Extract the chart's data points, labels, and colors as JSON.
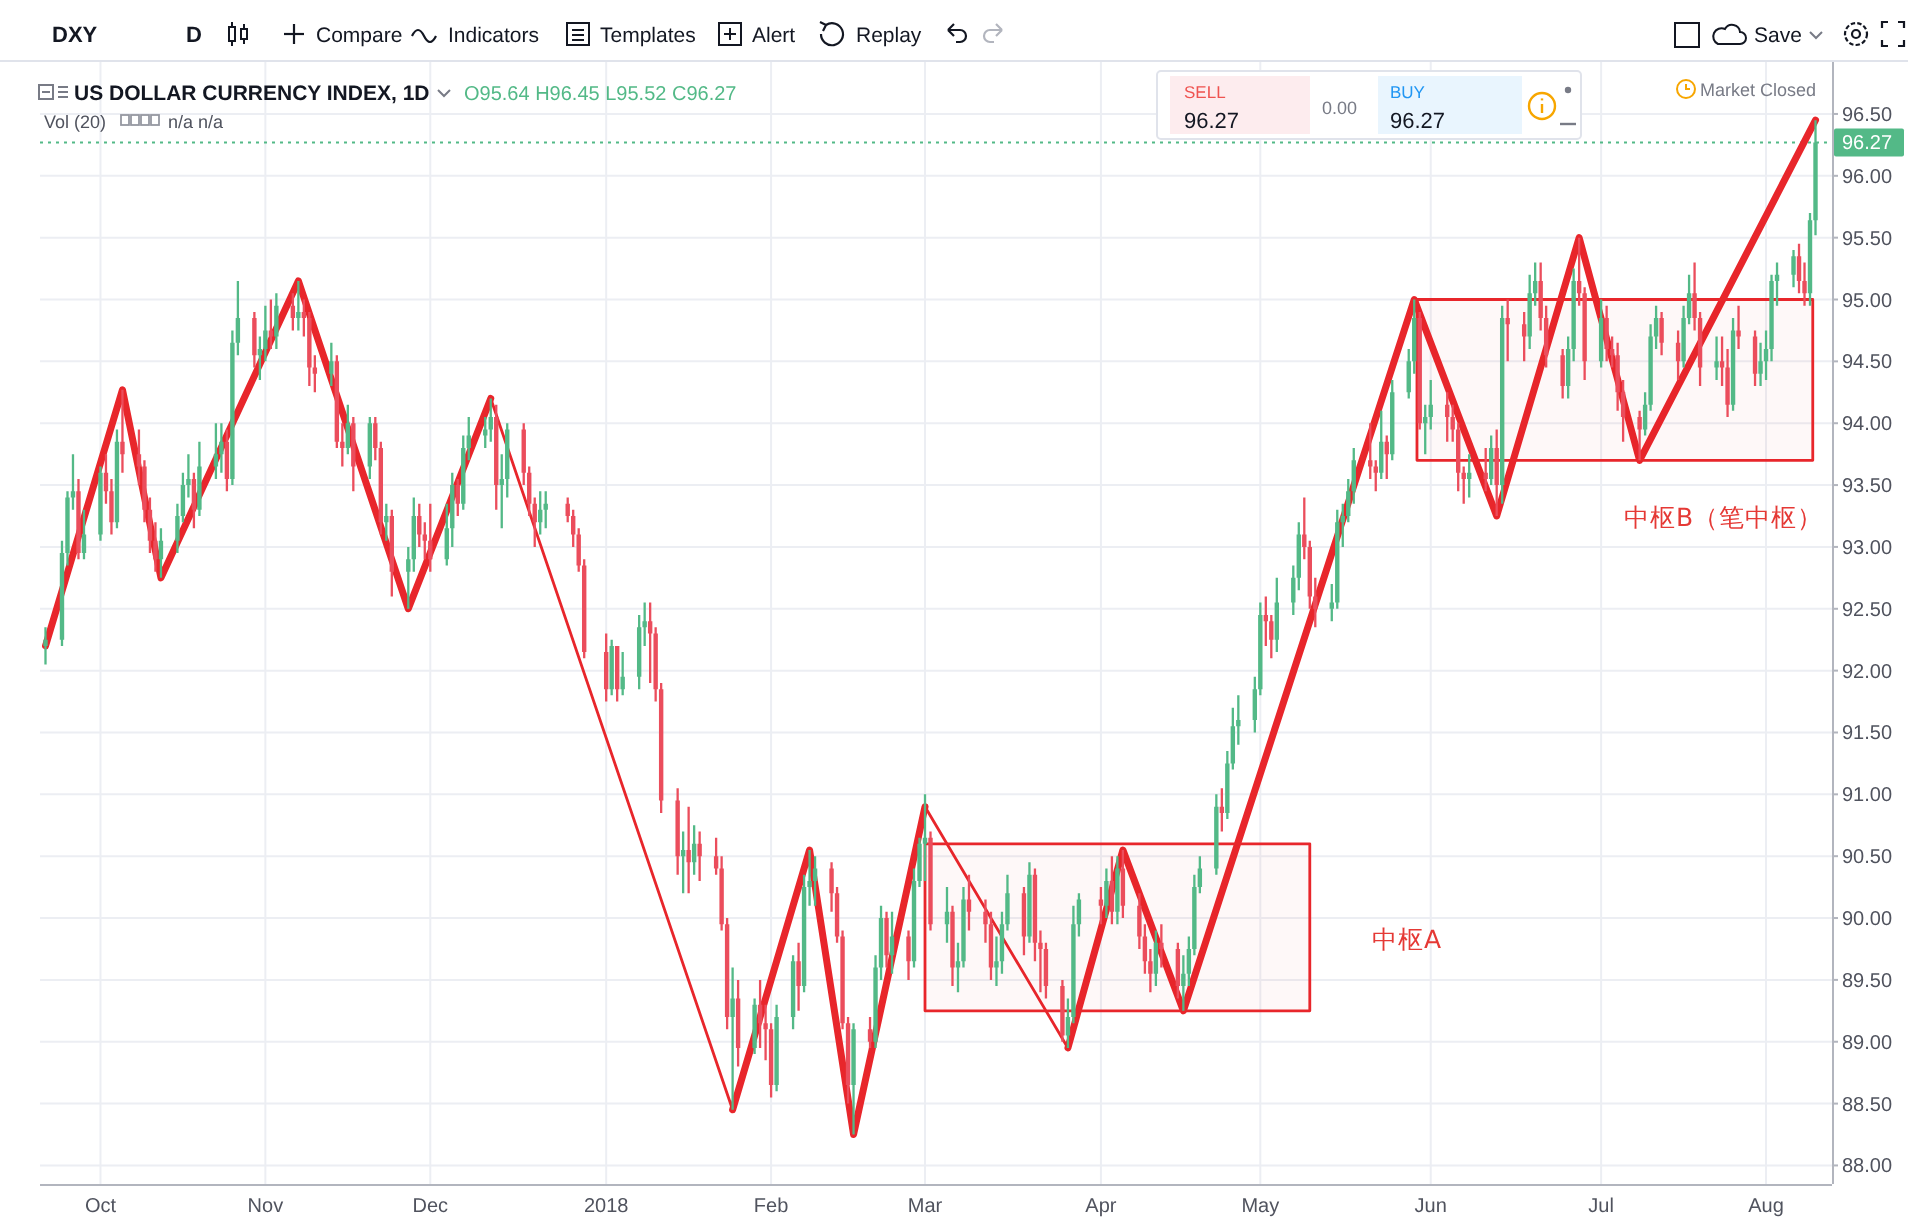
{
  "chart_data": {
    "type": "candlestick",
    "title": "US DOLLAR CURRENCY INDEX, 1D",
    "subtitle": "O95.64 H96.45 L95.52 C96.27",
    "x": [
      "2017-09-22",
      "2017-09-25",
      "2017-09-26",
      "2017-09-27",
      "2017-09-28",
      "2017-09-29",
      "2017-10-02",
      "2017-10-03",
      "2017-10-04",
      "2017-10-05",
      "2017-10-06",
      "2017-10-09",
      "2017-10-10",
      "2017-10-11",
      "2017-10-12",
      "2017-10-13",
      "2017-10-16",
      "2017-10-17",
      "2017-10-18",
      "2017-10-19",
      "2017-10-20",
      "2017-10-23",
      "2017-10-24",
      "2017-10-25",
      "2017-10-26",
      "2017-10-27",
      "2017-10-30",
      "2017-10-31",
      "2017-11-01",
      "2017-11-02",
      "2017-11-03",
      "2017-11-06",
      "2017-11-07",
      "2017-11-08",
      "2017-11-09",
      "2017-11-10",
      "2017-11-13",
      "2017-11-14",
      "2017-11-15",
      "2017-11-16",
      "2017-11-17",
      "2017-11-20",
      "2017-11-21",
      "2017-11-22",
      "2017-11-23",
      "2017-11-24",
      "2017-11-27",
      "2017-11-28",
      "2017-11-29",
      "2017-11-30",
      "2017-12-01",
      "2017-12-04",
      "2017-12-05",
      "2017-12-06",
      "2017-12-07",
      "2017-12-08",
      "2017-12-11",
      "2017-12-12",
      "2017-12-13",
      "2017-12-14",
      "2017-12-15",
      "2017-12-18",
      "2017-12-19",
      "2017-12-20",
      "2017-12-21",
      "2017-12-22",
      "2017-12-26",
      "2017-12-27",
      "2017-12-28",
      "2017-12-29",
      "2018-01-02",
      "2018-01-03",
      "2018-01-04",
      "2018-01-05",
      "2018-01-08",
      "2018-01-09",
      "2018-01-10",
      "2018-01-11",
      "2018-01-12",
      "2018-01-15",
      "2018-01-16",
      "2018-01-17",
      "2018-01-18",
      "2018-01-19",
      "2018-01-22",
      "2018-01-23",
      "2018-01-24",
      "2018-01-25",
      "2018-01-26",
      "2018-01-29",
      "2018-01-30",
      "2018-01-31",
      "2018-02-01",
      "2018-02-02",
      "2018-02-05",
      "2018-02-06",
      "2018-02-07",
      "2018-02-08",
      "2018-02-09",
      "2018-02-12",
      "2018-02-13",
      "2018-02-14",
      "2018-02-15",
      "2018-02-16",
      "2018-02-19",
      "2018-02-20",
      "2018-02-21",
      "2018-02-22",
      "2018-02-23",
      "2018-02-26",
      "2018-02-27",
      "2018-02-28",
      "2018-03-01",
      "2018-03-02",
      "2018-03-05",
      "2018-03-06",
      "2018-03-07",
      "2018-03-08",
      "2018-03-09",
      "2018-03-12",
      "2018-03-13",
      "2018-03-14",
      "2018-03-15",
      "2018-03-16",
      "2018-03-19",
      "2018-03-20",
      "2018-03-21",
      "2018-03-22",
      "2018-03-23",
      "2018-03-26",
      "2018-03-27",
      "2018-03-28",
      "2018-03-29",
      "2018-04-02",
      "2018-04-03",
      "2018-04-04",
      "2018-04-05",
      "2018-04-06",
      "2018-04-09",
      "2018-04-10",
      "2018-04-11",
      "2018-04-12",
      "2018-04-13",
      "2018-04-16",
      "2018-04-17",
      "2018-04-18",
      "2018-04-19",
      "2018-04-20",
      "2018-04-23",
      "2018-04-24",
      "2018-04-25",
      "2018-04-26",
      "2018-04-27",
      "2018-04-30",
      "2018-05-01",
      "2018-05-02",
      "2018-05-03",
      "2018-05-04",
      "2018-05-07",
      "2018-05-08",
      "2018-05-09",
      "2018-05-10",
      "2018-05-11",
      "2018-05-14",
      "2018-05-15",
      "2018-05-16",
      "2018-05-17",
      "2018-05-18",
      "2018-05-21",
      "2018-05-22",
      "2018-05-23",
      "2018-05-24",
      "2018-05-25",
      "2018-05-28",
      "2018-05-29",
      "2018-05-30",
      "2018-05-31",
      "2018-06-01",
      "2018-06-04",
      "2018-06-05",
      "2018-06-06",
      "2018-06-07",
      "2018-06-08",
      "2018-06-11",
      "2018-06-12",
      "2018-06-13",
      "2018-06-14",
      "2018-06-15",
      "2018-06-18",
      "2018-06-19",
      "2018-06-20",
      "2018-06-21",
      "2018-06-22",
      "2018-06-25",
      "2018-06-26",
      "2018-06-27",
      "2018-06-28",
      "2018-06-29",
      "2018-07-02",
      "2018-07-03",
      "2018-07-04",
      "2018-07-05",
      "2018-07-06",
      "2018-07-09",
      "2018-07-10",
      "2018-07-11",
      "2018-07-12",
      "2018-07-13",
      "2018-07-16",
      "2018-07-17",
      "2018-07-18",
      "2018-07-19",
      "2018-07-20",
      "2018-07-23",
      "2018-07-24",
      "2018-07-25",
      "2018-07-26",
      "2018-07-27",
      "2018-07-30",
      "2018-07-31",
      "2018-08-01",
      "2018-08-02",
      "2018-08-03",
      "2018-08-06",
      "2018-08-07",
      "2018-08-08",
      "2018-08-09",
      "2018-08-10"
    ],
    "ohlc": [
      [
        92.2,
        92.35,
        92.05,
        92.25
      ],
      [
        92.25,
        93.05,
        92.2,
        92.95
      ],
      [
        92.95,
        93.45,
        92.85,
        93.4
      ],
      [
        93.4,
        93.75,
        93.3,
        93.45
      ],
      [
        93.45,
        93.55,
        92.9,
        92.95
      ],
      [
        92.95,
        93.3,
        92.9,
        93.1
      ],
      [
        93.1,
        93.65,
        93.05,
        93.6
      ],
      [
        93.6,
        93.75,
        93.35,
        93.45
      ],
      [
        93.45,
        93.55,
        93.1,
        93.2
      ],
      [
        93.2,
        93.95,
        93.15,
        93.85
      ],
      [
        93.85,
        94.27,
        93.6,
        93.75
      ],
      [
        93.75,
        93.95,
        93.5,
        93.65
      ],
      [
        93.65,
        93.7,
        93.2,
        93.3
      ],
      [
        93.3,
        93.4,
        92.95,
        93.05
      ],
      [
        93.05,
        93.2,
        92.8,
        92.9
      ],
      [
        92.9,
        93.15,
        92.75,
        93.05
      ],
      [
        93.05,
        93.35,
        92.95,
        93.25
      ],
      [
        93.25,
        93.6,
        93.2,
        93.5
      ],
      [
        93.5,
        93.75,
        93.4,
        93.55
      ],
      [
        93.55,
        93.6,
        93.15,
        93.3
      ],
      [
        93.3,
        93.85,
        93.25,
        93.65
      ],
      [
        93.65,
        94.0,
        93.55,
        93.75
      ],
      [
        93.75,
        94.0,
        93.6,
        93.85
      ],
      [
        93.85,
        93.95,
        93.45,
        93.55
      ],
      [
        93.55,
        94.75,
        93.5,
        94.65
      ],
      [
        94.65,
        95.15,
        94.55,
        94.85
      ],
      [
        94.85,
        94.9,
        94.45,
        94.55
      ],
      [
        94.55,
        94.7,
        94.35,
        94.6
      ],
      [
        94.6,
        94.95,
        94.5,
        94.75
      ],
      [
        94.75,
        95.0,
        94.6,
        94.7
      ],
      [
        94.7,
        95.05,
        94.6,
        94.95
      ],
      [
        94.95,
        95.05,
        94.75,
        94.85
      ],
      [
        94.85,
        95.15,
        94.75,
        94.9
      ],
      [
        94.9,
        95.0,
        94.7,
        94.85
      ],
      [
        94.85,
        94.9,
        94.3,
        94.45
      ],
      [
        94.45,
        94.55,
        94.25,
        94.4
      ],
      [
        94.4,
        94.65,
        94.3,
        94.5
      ],
      [
        94.5,
        94.55,
        93.8,
        93.85
      ],
      [
        93.85,
        94.0,
        93.65,
        93.8
      ],
      [
        93.8,
        94.15,
        93.75,
        94.0
      ],
      [
        94.0,
        94.05,
        93.45,
        93.65
      ],
      [
        93.65,
        94.05,
        93.55,
        94.0
      ],
      [
        94.0,
        94.05,
        93.7,
        93.8
      ],
      [
        93.8,
        93.85,
        93.1,
        93.2
      ],
      [
        93.2,
        93.35,
        93.05,
        93.25
      ],
      [
        93.25,
        93.3,
        92.6,
        92.8
      ],
      [
        92.8,
        93.0,
        92.5,
        92.9
      ],
      [
        92.9,
        93.4,
        92.8,
        93.25
      ],
      [
        93.25,
        93.35,
        93.0,
        93.1
      ],
      [
        93.1,
        93.2,
        92.9,
        93.05
      ],
      [
        93.05,
        93.35,
        92.8,
        92.9
      ],
      [
        92.9,
        93.35,
        92.85,
        93.15
      ],
      [
        93.15,
        93.6,
        93.0,
        93.5
      ],
      [
        93.5,
        93.55,
        93.25,
        93.35
      ],
      [
        93.35,
        93.9,
        93.3,
        93.8
      ],
      [
        93.8,
        94.05,
        93.7,
        93.9
      ],
      [
        93.9,
        94.05,
        93.8,
        93.95
      ],
      [
        93.95,
        94.2,
        93.85,
        94.05
      ],
      [
        94.05,
        94.15,
        93.3,
        93.5
      ],
      [
        93.5,
        93.75,
        93.15,
        93.55
      ],
      [
        93.55,
        94.0,
        93.4,
        93.95
      ],
      [
        93.95,
        94.0,
        93.5,
        93.6
      ],
      [
        93.6,
        93.65,
        93.25,
        93.35
      ],
      [
        93.35,
        93.4,
        93.0,
        93.2
      ],
      [
        93.2,
        93.45,
        93.1,
        93.3
      ],
      [
        93.3,
        93.45,
        93.15,
        93.35
      ],
      [
        93.35,
        93.4,
        93.2,
        93.25
      ],
      [
        93.25,
        93.3,
        93.0,
        93.1
      ],
      [
        93.1,
        93.15,
        92.8,
        92.85
      ],
      [
        92.85,
        92.9,
        92.1,
        92.15
      ],
      [
        92.15,
        92.3,
        91.75,
        91.85
      ],
      [
        91.85,
        92.25,
        91.8,
        92.2
      ],
      [
        92.2,
        92.2,
        91.75,
        91.85
      ],
      [
        91.85,
        92.15,
        91.8,
        91.95
      ],
      [
        91.95,
        92.45,
        91.85,
        92.35
      ],
      [
        92.35,
        92.55,
        92.2,
        92.4
      ],
      [
        92.4,
        92.55,
        91.9,
        92.3
      ],
      [
        92.3,
        92.35,
        91.75,
        91.85
      ],
      [
        91.85,
        91.9,
        90.85,
        90.95
      ],
      [
        90.95,
        91.05,
        90.35,
        90.5
      ],
      [
        90.5,
        90.7,
        90.2,
        90.55
      ],
      [
        90.55,
        90.9,
        90.2,
        90.45
      ],
      [
        90.45,
        90.75,
        90.35,
        90.6
      ],
      [
        90.6,
        90.7,
        90.3,
        90.5
      ],
      [
        90.5,
        90.65,
        90.35,
        90.4
      ],
      [
        90.4,
        90.5,
        89.9,
        89.95
      ],
      [
        89.95,
        90.0,
        89.1,
        89.2
      ],
      [
        89.2,
        89.6,
        88.45,
        89.35
      ],
      [
        89.35,
        89.5,
        88.8,
        88.95
      ],
      [
        88.95,
        89.35,
        88.9,
        89.3
      ],
      [
        89.3,
        89.5,
        88.95,
        89.15
      ],
      [
        89.15,
        89.3,
        88.85,
        89.1
      ],
      [
        89.1,
        89.15,
        88.55,
        88.65
      ],
      [
        88.65,
        89.3,
        88.6,
        89.2
      ],
      [
        89.2,
        89.7,
        89.1,
        89.65
      ],
      [
        89.65,
        89.8,
        89.25,
        89.45
      ],
      [
        89.45,
        90.35,
        89.4,
        90.25
      ],
      [
        90.25,
        90.55,
        90.1,
        90.3
      ],
      [
        90.3,
        90.5,
        90.1,
        90.4
      ],
      [
        90.4,
        90.45,
        90.05,
        90.2
      ],
      [
        90.2,
        90.25,
        89.8,
        89.85
      ],
      [
        89.85,
        89.9,
        89.1,
        89.15
      ],
      [
        89.15,
        89.2,
        88.5,
        88.65
      ],
      [
        88.65,
        89.15,
        88.25,
        89.1
      ],
      [
        89.1,
        89.2,
        88.95,
        89.0
      ],
      [
        89.0,
        89.7,
        88.95,
        89.6
      ],
      [
        89.6,
        90.1,
        89.5,
        90.0
      ],
      [
        90.0,
        90.05,
        89.6,
        89.7
      ],
      [
        89.7,
        90.05,
        89.55,
        89.85
      ],
      [
        89.85,
        89.9,
        89.5,
        89.65
      ],
      [
        89.65,
        90.4,
        89.6,
        90.3
      ],
      [
        90.3,
        90.65,
        90.25,
        90.6
      ],
      [
        90.6,
        91.0,
        90.3,
        90.65
      ],
      [
        90.65,
        90.7,
        89.9,
        89.95
      ],
      [
        89.95,
        90.25,
        89.8,
        90.05
      ],
      [
        90.05,
        90.1,
        89.45,
        89.6
      ],
      [
        89.6,
        89.8,
        89.4,
        89.65
      ],
      [
        89.65,
        90.25,
        89.6,
        90.15
      ],
      [
        90.15,
        90.35,
        89.9,
        90.05
      ],
      [
        90.05,
        90.15,
        89.8,
        89.95
      ],
      [
        89.95,
        90.05,
        89.5,
        89.6
      ],
      [
        89.6,
        89.85,
        89.45,
        89.65
      ],
      [
        89.65,
        90.05,
        89.55,
        89.95
      ],
      [
        89.95,
        90.35,
        89.9,
        90.2
      ],
      [
        90.2,
        90.25,
        89.7,
        89.85
      ],
      [
        89.85,
        90.45,
        89.8,
        90.35
      ],
      [
        90.35,
        90.4,
        89.65,
        89.8
      ],
      [
        89.8,
        89.9,
        89.4,
        89.75
      ],
      [
        89.75,
        89.8,
        89.35,
        89.45
      ],
      [
        89.45,
        89.5,
        89.0,
        89.05
      ],
      [
        89.05,
        89.35,
        88.95,
        89.2
      ],
      [
        89.2,
        90.1,
        89.15,
        89.95
      ],
      [
        89.95,
        90.2,
        89.85,
        90.15
      ],
      [
        90.15,
        90.25,
        89.95,
        90.1
      ],
      [
        90.1,
        90.4,
        90.0,
        90.3
      ],
      [
        90.3,
        90.5,
        89.95,
        90.05
      ],
      [
        90.05,
        90.5,
        89.95,
        90.4
      ],
      [
        90.4,
        90.55,
        90.0,
        90.1
      ],
      [
        90.1,
        90.2,
        89.75,
        89.85
      ],
      [
        89.85,
        89.95,
        89.55,
        89.65
      ],
      [
        89.65,
        89.75,
        89.4,
        89.55
      ],
      [
        89.55,
        89.9,
        89.45,
        89.8
      ],
      [
        89.8,
        89.95,
        89.6,
        89.75
      ],
      [
        89.75,
        89.8,
        89.35,
        89.45
      ],
      [
        89.45,
        89.7,
        89.25,
        89.55
      ],
      [
        89.55,
        89.85,
        89.45,
        89.75
      ],
      [
        89.75,
        90.35,
        89.7,
        90.25
      ],
      [
        90.25,
        90.5,
        90.2,
        90.4
      ],
      [
        90.4,
        91.0,
        90.35,
        90.9
      ],
      [
        90.9,
        91.05,
        90.7,
        90.85
      ],
      [
        90.85,
        91.35,
        90.8,
        91.25
      ],
      [
        91.25,
        91.7,
        91.2,
        91.55
      ],
      [
        91.55,
        91.8,
        91.4,
        91.6
      ],
      [
        91.6,
        91.95,
        91.5,
        91.85
      ],
      [
        91.85,
        92.55,
        91.8,
        92.45
      ],
      [
        92.45,
        92.6,
        92.2,
        92.4
      ],
      [
        92.4,
        92.45,
        92.1,
        92.25
      ],
      [
        92.25,
        92.75,
        92.15,
        92.55
      ],
      [
        92.55,
        92.85,
        92.45,
        92.75
      ],
      [
        92.75,
        93.2,
        92.65,
        93.1
      ],
      [
        93.1,
        93.4,
        92.9,
        93.0
      ],
      [
        93.0,
        93.05,
        92.5,
        92.6
      ],
      [
        92.6,
        92.75,
        92.35,
        92.5
      ],
      [
        92.5,
        92.7,
        92.4,
        92.55
      ],
      [
        92.55,
        93.3,
        92.5,
        93.2
      ],
      [
        93.2,
        93.35,
        93.0,
        93.25
      ],
      [
        93.25,
        93.55,
        93.2,
        93.45
      ],
      [
        93.45,
        93.8,
        93.35,
        93.7
      ],
      [
        93.7,
        94.0,
        93.55,
        93.65
      ],
      [
        93.65,
        93.7,
        93.45,
        93.6
      ],
      [
        93.6,
        94.1,
        93.55,
        93.85
      ],
      [
        93.85,
        93.9,
        93.55,
        93.75
      ],
      [
        93.75,
        94.35,
        93.7,
        94.25
      ],
      [
        94.25,
        94.6,
        94.2,
        94.5
      ],
      [
        94.5,
        95.0,
        94.4,
        94.85
      ],
      [
        94.85,
        94.9,
        93.95,
        94.0
      ],
      [
        94.0,
        94.15,
        93.75,
        94.05
      ],
      [
        94.05,
        94.35,
        93.95,
        94.15
      ],
      [
        94.15,
        94.25,
        93.85,
        94.05
      ],
      [
        94.05,
        94.15,
        93.85,
        93.95
      ],
      [
        93.95,
        94.0,
        93.45,
        93.6
      ],
      [
        93.6,
        93.65,
        93.35,
        93.55
      ],
      [
        93.55,
        93.75,
        93.4,
        93.6
      ],
      [
        93.6,
        93.8,
        93.45,
        93.55
      ],
      [
        93.55,
        93.9,
        93.5,
        93.8
      ],
      [
        93.8,
        93.95,
        93.25,
        93.5
      ],
      [
        93.5,
        94.95,
        93.35,
        94.85
      ],
      [
        94.85,
        95.0,
        94.5,
        94.8
      ],
      [
        94.8,
        94.9,
        94.5,
        94.7
      ],
      [
        94.7,
        95.2,
        94.6,
        95.05
      ],
      [
        95.05,
        95.3,
        94.95,
        95.15
      ],
      [
        95.15,
        95.3,
        94.75,
        94.85
      ],
      [
        94.85,
        94.95,
        94.45,
        94.55
      ],
      [
        94.55,
        94.6,
        94.2,
        94.3
      ],
      [
        94.3,
        94.7,
        94.2,
        94.6
      ],
      [
        94.6,
        95.25,
        94.5,
        95.15
      ],
      [
        95.15,
        95.5,
        94.95,
        95.05
      ],
      [
        95.05,
        95.1,
        94.35,
        94.5
      ],
      [
        94.5,
        95.0,
        94.45,
        94.85
      ],
      [
        94.85,
        94.95,
        94.5,
        94.6
      ],
      [
        94.6,
        94.7,
        94.45,
        94.55
      ],
      [
        94.55,
        94.65,
        94.1,
        94.25
      ],
      [
        94.25,
        94.35,
        93.85,
        94.05
      ],
      [
        94.05,
        94.1,
        93.7,
        93.95
      ],
      [
        93.95,
        94.25,
        93.9,
        94.15
      ],
      [
        94.15,
        94.8,
        94.1,
        94.7
      ],
      [
        94.7,
        94.95,
        94.6,
        94.85
      ],
      [
        94.85,
        94.9,
        94.55,
        94.65
      ],
      [
        94.65,
        94.75,
        94.35,
        94.5
      ],
      [
        94.5,
        94.95,
        94.45,
        94.85
      ],
      [
        94.85,
        95.2,
        94.8,
        95.05
      ],
      [
        95.05,
        95.3,
        94.75,
        94.85
      ],
      [
        94.85,
        94.9,
        94.3,
        94.45
      ],
      [
        94.45,
        94.7,
        94.35,
        94.5
      ],
      [
        94.5,
        94.7,
        94.3,
        94.45
      ],
      [
        94.45,
        94.6,
        94.05,
        94.15
      ],
      [
        94.15,
        94.85,
        94.1,
        94.75
      ],
      [
        94.75,
        94.95,
        94.6,
        94.7
      ],
      [
        94.7,
        94.75,
        94.3,
        94.4
      ],
      [
        94.4,
        94.65,
        94.3,
        94.5
      ],
      [
        94.5,
        94.75,
        94.35,
        94.6
      ],
      [
        94.6,
        95.2,
        94.5,
        95.15
      ],
      [
        95.15,
        95.3,
        94.95,
        95.2
      ],
      [
        95.2,
        95.4,
        95.1,
        95.35
      ],
      [
        95.35,
        95.45,
        95.05,
        95.15
      ],
      [
        95.15,
        95.3,
        94.95,
        95.05
      ],
      [
        95.05,
        95.7,
        94.95,
        95.64
      ],
      [
        95.64,
        96.45,
        95.52,
        96.27
      ]
    ],
    "colors": [
      "#53b987",
      "#53b987",
      "#53b987",
      "#53b987",
      "#eb4d5c",
      "#53b987",
      "#53b987",
      "#eb4d5c",
      "#eb4d5c",
      "#53b987",
      "#eb4d5c",
      "#eb4d5c",
      "#eb4d5c",
      "#eb4d5c",
      "#eb4d5c",
      "#53b987",
      "#53b987",
      "#53b987",
      "#53b987",
      "#eb4d5c",
      "#53b987",
      "#53b987",
      "#53b987",
      "#eb4d5c",
      "#53b987",
      "#53b987",
      "#eb4d5c",
      "#53b987",
      "#53b987",
      "#eb4d5c",
      "#53b987",
      "#eb4d5c",
      "#53b987",
      "#eb4d5c",
      "#eb4d5c",
      "#eb4d5c",
      "#53b987",
      "#eb4d5c",
      "#eb4d5c",
      "#53b987",
      "#eb4d5c",
      "#53b987",
      "#eb4d5c",
      "#eb4d5c",
      "#53b987",
      "#eb4d5c",
      "#53b987",
      "#53b987",
      "#eb4d5c",
      "#eb4d5c",
      "#eb4d5c",
      "#53b987",
      "#53b987",
      "#eb4d5c",
      "#53b987",
      "#53b987",
      "#53b987",
      "#53b987",
      "#eb4d5c",
      "#53b987",
      "#53b987",
      "#eb4d5c",
      "#eb4d5c",
      "#eb4d5c",
      "#53b987",
      "#53b987",
      "#eb4d5c",
      "#eb4d5c",
      "#eb4d5c",
      "#eb4d5c",
      "#eb4d5c",
      "#53b987",
      "#eb4d5c",
      "#53b987",
      "#53b987",
      "#53b987",
      "#eb4d5c",
      "#eb4d5c",
      "#eb4d5c",
      "#eb4d5c",
      "#53b987",
      "#eb4d5c",
      "#53b987",
      "#eb4d5c",
      "#eb4d5c",
      "#eb4d5c",
      "#eb4d5c",
      "#53b987",
      "#eb4d5c",
      "#53b987",
      "#eb4d5c",
      "#eb4d5c",
      "#eb4d5c",
      "#53b987",
      "#53b987",
      "#eb4d5c",
      "#53b987",
      "#53b987",
      "#53b987",
      "#eb4d5c",
      "#eb4d5c",
      "#eb4d5c",
      "#eb4d5c",
      "#53b987",
      "#eb4d5c",
      "#53b987",
      "#53b987",
      "#eb4d5c",
      "#53b987",
      "#eb4d5c",
      "#53b987",
      "#53b987",
      "#53b987",
      "#eb4d5c",
      "#53b987",
      "#eb4d5c",
      "#53b987",
      "#53b987",
      "#eb4d5c",
      "#eb4d5c",
      "#eb4d5c",
      "#53b987",
      "#53b987",
      "#53b987",
      "#eb4d5c",
      "#53b987",
      "#eb4d5c",
      "#eb4d5c",
      "#eb4d5c",
      "#eb4d5c",
      "#53b987",
      "#53b987",
      "#53b987",
      "#eb4d5c",
      "#53b987",
      "#eb4d5c",
      "#53b987",
      "#eb4d5c",
      "#eb4d5c",
      "#eb4d5c",
      "#eb4d5c",
      "#53b987",
      "#eb4d5c",
      "#eb4d5c",
      "#53b987",
      "#53b987",
      "#53b987",
      "#53b987",
      "#53b987",
      "#eb4d5c",
      "#53b987",
      "#53b987",
      "#53b987",
      "#53b987",
      "#53b987",
      "#eb4d5c",
      "#eb4d5c",
      "#53b987",
      "#53b987",
      "#53b987",
      "#eb4d5c",
      "#eb4d5c",
      "#eb4d5c",
      "#53b987",
      "#53b987",
      "#53b987",
      "#53b987",
      "#53b987",
      "#eb4d5c",
      "#eb4d5c",
      "#53b987",
      "#eb4d5c",
      "#53b987",
      "#53b987",
      "#53b987",
      "#eb4d5c",
      "#53b987",
      "#53b987",
      "#eb4d5c",
      "#eb4d5c",
      "#eb4d5c",
      "#eb4d5c",
      "#53b987",
      "#eb4d5c",
      "#53b987",
      "#eb4d5c",
      "#53b987",
      "#eb4d5c",
      "#eb4d5c",
      "#53b987",
      "#53b987",
      "#eb4d5c",
      "#eb4d5c",
      "#eb4d5c",
      "#53b987",
      "#53b987",
      "#eb4d5c",
      "#eb4d5c",
      "#53b987",
      "#eb4d5c",
      "#eb4d5c",
      "#eb4d5c",
      "#eb4d5c",
      "#eb4d5c",
      "#53b987",
      "#53b987",
      "#53b987",
      "#eb4d5c",
      "#eb4d5c",
      "#53b987",
      "#53b987",
      "#eb4d5c",
      "#eb4d5c",
      "#53b987",
      "#eb4d5c",
      "#eb4d5c",
      "#53b987",
      "#eb4d5c",
      "#eb4d5c",
      "#53b987",
      "#53b987",
      "#53b987",
      "#53b987",
      "#53b987",
      "#eb4d5c",
      "#eb4d5c",
      "#53b987",
      "#53b987"
    ],
    "series": [
      {
        "type": "line",
        "color": "#e8262b",
        "x": [
          "2017-09-22",
          "2017-10-06",
          "2017-10-13",
          "2017-11-07",
          "2017-11-27",
          "2017-12-12"
        ],
        "values": [
          92.2,
          94.27,
          92.75,
          95.15,
          92.5,
          94.2
        ]
      },
      {
        "type": "line",
        "color": "#e8262b",
        "x": [
          "2017-12-12",
          "2018-01-25"
        ],
        "values": [
          94.2,
          88.45
        ]
      },
      {
        "type": "line",
        "color": "#e8262b",
        "x": [
          "2018-01-25",
          "2018-02-08",
          "2018-02-16",
          "2018-03-01"
        ],
        "values": [
          88.45,
          90.55,
          88.25,
          90.9
        ]
      },
      {
        "type": "line",
        "color": "#e8262b",
        "x": [
          "2018-03-01",
          "2018-03-27"
        ],
        "values": [
          90.9,
          88.95
        ]
      },
      {
        "type": "line",
        "color": "#e8262b",
        "x": [
          "2018-03-27",
          "2018-04-06",
          "2018-04-17",
          "2018-05-29",
          "2018-06-13",
          "2018-06-28",
          "2018-07-09",
          "2018-08-10"
        ],
        "values": [
          88.95,
          90.55,
          89.25,
          95.0,
          93.25,
          95.5,
          93.7,
          96.45
        ]
      },
      {
        "type": "line",
        "color": "#e8262b",
        "x": [
          "2018-03-01",
          "2018-05-10"
        ],
        "values": [
          null,
          null
        ],
        "lower": [
          89.25,
          89.25
        ],
        "upper": [
          90.6,
          90.6
        ]
      },
      {
        "type": "line",
        "color": "#e8262b",
        "x": [
          "2018-05-29T12:00",
          "2018-08-09T12:00"
        ],
        "values": [
          null,
          null
        ],
        "lower": [
          93.7,
          93.7
        ],
        "upper": [
          95.0,
          95.0
        ]
      }
    ],
    "xlim": [
      "2017-09-21",
      "2018-08-13"
    ],
    "xticks": [
      {
        "value": "2017-10-02",
        "label": "Oct"
      },
      {
        "value": "2017-11-01",
        "label": "Nov"
      },
      {
        "value": "2017-12-01",
        "label": "Dec"
      },
      {
        "value": "2018-01-02",
        "label": "2018"
      },
      {
        "value": "2018-02-01",
        "label": "Feb"
      },
      {
        "value": "2018-03-01",
        "label": "Mar"
      },
      {
        "value": "2018-04-02",
        "label": "Apr"
      },
      {
        "value": "2018-05-01",
        "label": "May"
      },
      {
        "value": "2018-06-01",
        "label": "Jun"
      },
      {
        "value": "2018-07-02",
        "label": "Jul"
      },
      {
        "value": "2018-08-01",
        "label": "Aug"
      }
    ],
    "ylim": [
      87.85,
      96.92
    ],
    "yticks": [
      {
        "value": 88,
        "label": "88.00"
      },
      {
        "value": 88.5,
        "label": "88.50"
      },
      {
        "value": 89,
        "label": "89.00"
      },
      {
        "value": 89.5,
        "label": "89.50"
      },
      {
        "value": 90,
        "label": "90.00"
      },
      {
        "value": 90.5,
        "label": "90.50"
      },
      {
        "value": 91,
        "label": "91.00"
      },
      {
        "value": 91.5,
        "label": "91.50"
      },
      {
        "value": 92,
        "label": "92.00"
      },
      {
        "value": 92.5,
        "label": "92.50"
      },
      {
        "value": 93,
        "label": "93.00"
      },
      {
        "value": 93.5,
        "label": "93.50"
      },
      {
        "value": 94,
        "label": "94.00"
      },
      {
        "value": 94.5,
        "label": "94.50"
      },
      {
        "value": 95,
        "label": "95.00"
      },
      {
        "value": 95.5,
        "label": "95.50"
      },
      {
        "value": 96,
        "label": "96.00"
      },
      {
        "value": 96.5,
        "label": "96.50"
      }
    ],
    "grid": true,
    "ref_lines": [
      {
        "axis": "y",
        "value": 96.27,
        "label": "96.27",
        "color": "#53b987",
        "line_style": "dotted"
      }
    ],
    "annotations": [
      "DXY",
      "D",
      "Compare",
      "Indicators",
      "Templates",
      "Alert",
      "Replay",
      "Save",
      "Vol (20)",
      "n/a n/a",
      "SELL",
      "96.27",
      "0.00",
      "BUY",
      "96.27",
      "Market Closed",
      "中枢A",
      "中枢B（笔中枢）"
    ]
  }
}
